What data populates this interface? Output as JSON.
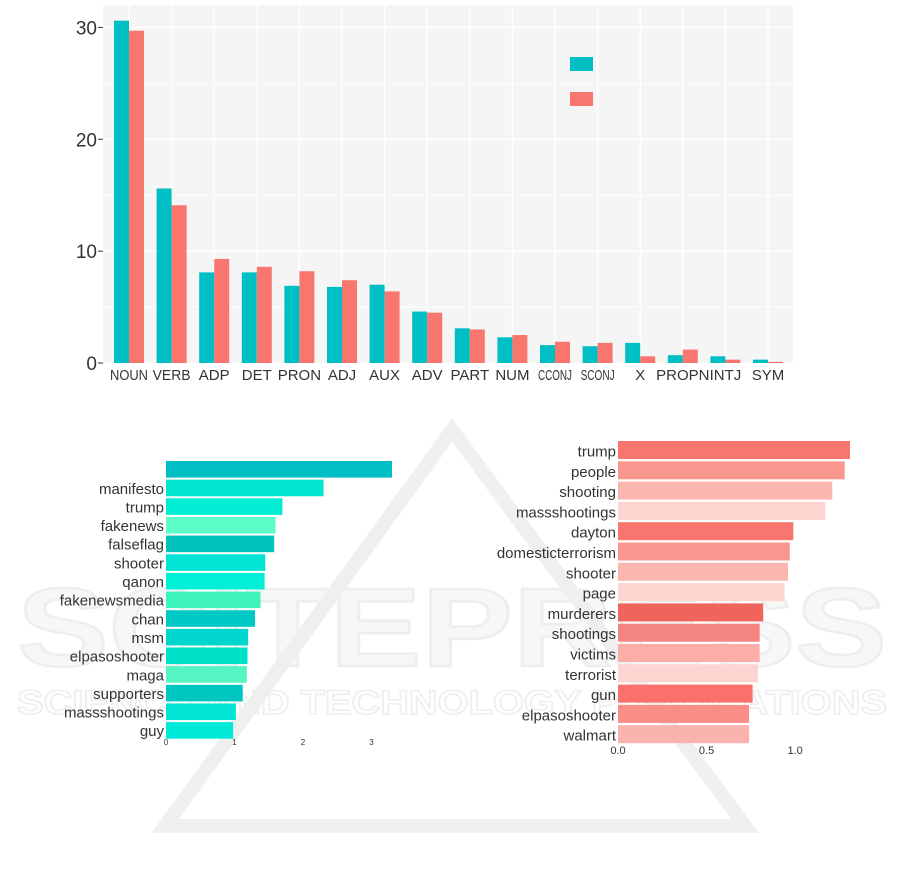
{
  "watermark": {
    "main_text": "SCITEPRESS",
    "sub_text": "SCIENCE AND TECHNOLOGY PUBLICATIONS"
  },
  "colors": {
    "teal": "#00BFC4",
    "salmon": "#F8766D",
    "panel_bg": "#F5F5F5",
    "grid": "#FFFFFF"
  },
  "chart_data": [
    {
      "type": "bar",
      "categories": [
        "NOUN",
        "VERB",
        "ADP",
        "DET",
        "PRON",
        "ADJ",
        "AUX",
        "ADV",
        "PART",
        "NUM",
        "CCONJ",
        "SCONJ",
        "X",
        "PROPN",
        "INTJ",
        "SYM"
      ],
      "series": [
        {
          "color": "#00BFC4",
          "values": [
            30.6,
            15.6,
            8.1,
            8.1,
            6.9,
            6.8,
            7.0,
            4.6,
            3.1,
            2.3,
            1.6,
            1.5,
            1.8,
            0.7,
            0.6,
            0.3
          ]
        },
        {
          "color": "#F8766D",
          "values": [
            29.7,
            14.1,
            9.3,
            8.6,
            8.2,
            7.4,
            6.4,
            4.5,
            3.0,
            2.5,
            1.9,
            1.8,
            0.6,
            1.2,
            0.3,
            0.1
          ]
        }
      ],
      "yticks": [
        0,
        10,
        20,
        30
      ],
      "ylim": [
        0,
        32
      ],
      "grid": true,
      "legend": "top-right (colour keys only, no labels)"
    },
    {
      "type": "bar",
      "orientation": "horizontal",
      "color": "#00BFC4",
      "categories": [
        "",
        "manifesto",
        "trump",
        "fakenews",
        "falseflag",
        "shooter",
        "qanon",
        "fakenewsmedia",
        "chan",
        "msm",
        "elpasoshooter",
        "maga",
        "supporters",
        "massshootings",
        "guy"
      ],
      "values": [
        3.3,
        2.3,
        1.7,
        1.6,
        1.58,
        1.45,
        1.44,
        1.38,
        1.3,
        1.2,
        1.19,
        1.18,
        1.12,
        1.02,
        0.98
      ],
      "shades": [
        "#00BFC4",
        "#00E5CF",
        "#00EDD4",
        "#5CFFC8",
        "#00C3BC",
        "#00E5D6",
        "#00F0D7",
        "#3FF4BC",
        "#00C8C4",
        "#00D6CD",
        "#00E0C9",
        "#54F5C2",
        "#00C6C2",
        "#00E4D6",
        "#00EAD8"
      ],
      "xticks": [
        "0",
        "1",
        "2",
        "3"
      ],
      "xlim": [
        0,
        3.3
      ]
    },
    {
      "type": "bar",
      "orientation": "horizontal",
      "color": "#F8766D",
      "categories": [
        "trump",
        "people",
        "shooting",
        "massshootings",
        "dayton",
        "domesticterrorism",
        "shooter",
        "page",
        "murderers",
        "shootings",
        "victims",
        "terrorist",
        "gun",
        "elpasoshooter",
        "walmart"
      ],
      "values": [
        1.31,
        1.28,
        1.21,
        1.17,
        0.99,
        0.97,
        0.96,
        0.94,
        0.82,
        0.8,
        0.8,
        0.79,
        0.76,
        0.74,
        0.74
      ],
      "shades": [
        "#F8766D",
        "#F9978F",
        "#FBB6AF",
        "#FDD4CF",
        "#F8766D",
        "#F9978F",
        "#FBB6AF",
        "#FDD4CF",
        "#F0645E",
        "#F48580",
        "#FBADA7",
        "#FDD4CF",
        "#F9716A",
        "#F98E86",
        "#FBB4AD"
      ],
      "xticks": [
        "0.0",
        "0.5",
        "1.0"
      ],
      "xlim": [
        0,
        1.31
      ]
    }
  ]
}
